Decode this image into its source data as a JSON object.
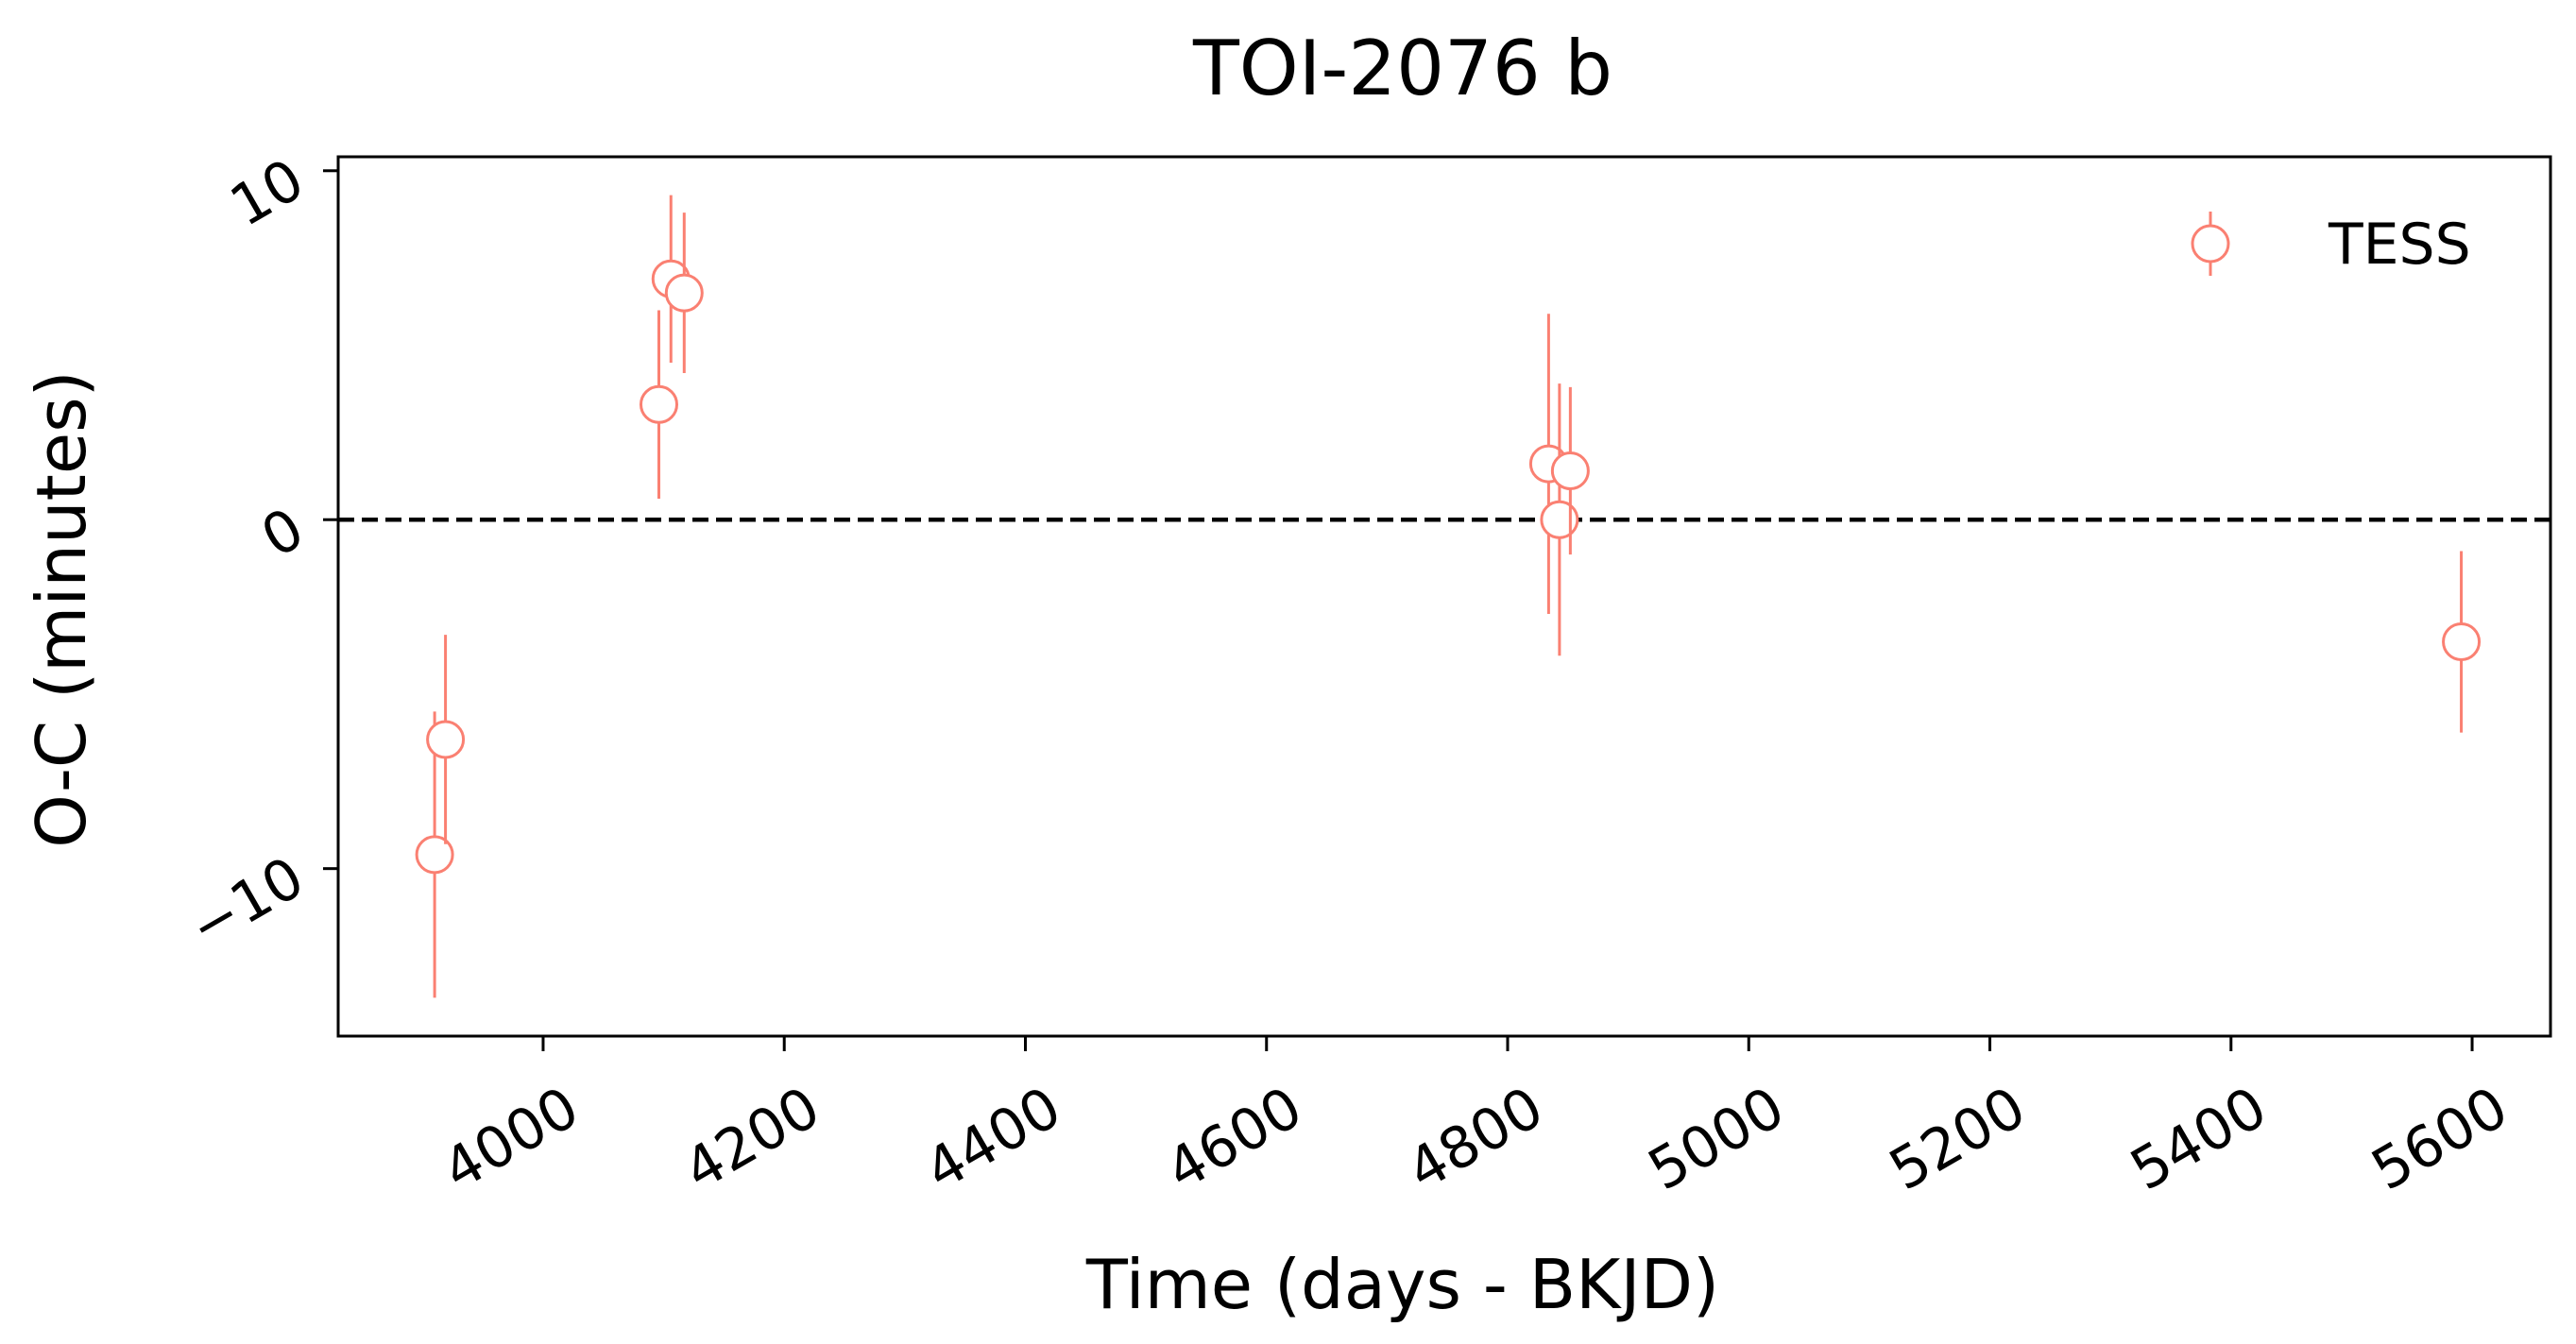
{
  "chart_data": {
    "type": "scatter",
    "title": "TOI-2076 b",
    "xlabel": "Time (days - BKJD)",
    "ylabel": "O-C (minutes)",
    "xlim": [
      3830,
      5665
    ],
    "ylim": [
      -14.8,
      10.4
    ],
    "xticks": [
      4000,
      4200,
      4400,
      4600,
      4800,
      5000,
      5200,
      5400,
      5600
    ],
    "xtick_labels": [
      "4000",
      "4200",
      "4400",
      "4600",
      "4800",
      "5000",
      "5200",
      "5400",
      "5600"
    ],
    "yticks": [
      10,
      0,
      -10
    ],
    "ytick_labels": [
      "10",
      "0",
      "−10"
    ],
    "tick_rotation_deg": 30,
    "reference_line": {
      "y": 0,
      "style": "dashed",
      "color": "#000000"
    },
    "grid": false,
    "legend": {
      "position": "top-right",
      "entries": [
        "TESS"
      ]
    },
    "series": [
      {
        "name": "TESS",
        "color": "#fa8072",
        "marker": "open-circle",
        "points": [
          {
            "x": 3910,
            "y": -9.6,
            "err": 4.1
          },
          {
            "x": 3919,
            "y": -6.3,
            "err": 3.0
          },
          {
            "x": 4096,
            "y": 3.3,
            "err": 2.7
          },
          {
            "x": 4106,
            "y": 6.9,
            "err": 2.4
          },
          {
            "x": 4117,
            "y": 6.5,
            "err": 2.3
          },
          {
            "x": 4834,
            "y": 1.6,
            "err": 4.3
          },
          {
            "x": 4843,
            "y": 0.0,
            "err": 3.9
          },
          {
            "x": 4852,
            "y": 1.4,
            "err": 2.4
          },
          {
            "x": 5591,
            "y": -3.5,
            "err": 2.6
          }
        ]
      }
    ]
  }
}
